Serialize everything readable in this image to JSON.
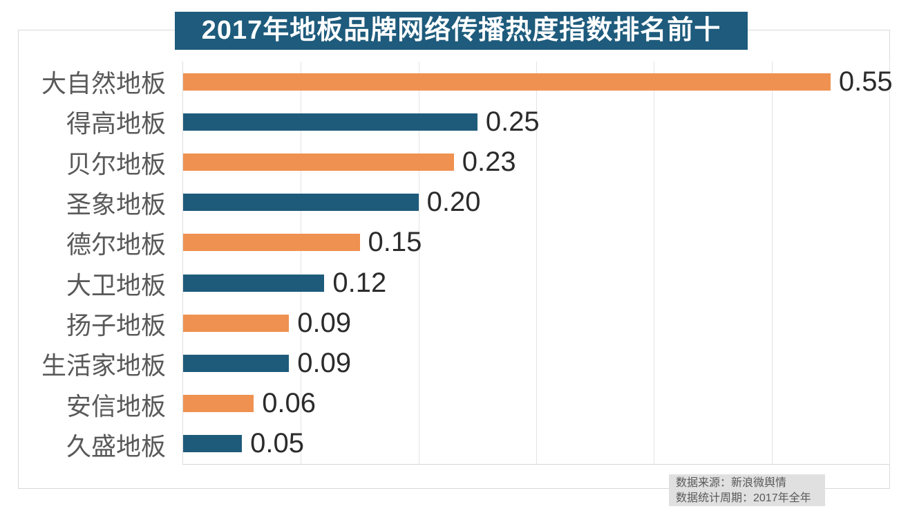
{
  "title": "2017年地板品牌网络传播热度指数排名前十",
  "colors": {
    "title_bg": "#1e5b7c",
    "bar_orange": "#ef9150",
    "bar_blue": "#1e5b7b",
    "category_label": "#595959",
    "value_label": "#2b2b2b",
    "gridline": "#e3e3e3",
    "note_bg": "#e0e0e0"
  },
  "source_note": {
    "line1": "数据来源：新浪微舆情",
    "line2": "数据统计周期：2017年全年"
  },
  "chart_data": {
    "type": "bar",
    "orientation": "horizontal",
    "title": "2017年地板品牌网络传播热度指数排名前十",
    "categories": [
      "大自然地板",
      "得高地板",
      "贝尔地板",
      "圣象地板",
      "德尔地板",
      "大卫地板",
      "扬子地板",
      "生活家地板",
      "安信地板",
      "久盛地板"
    ],
    "values": [
      0.55,
      0.25,
      0.23,
      0.2,
      0.15,
      0.12,
      0.09,
      0.09,
      0.06,
      0.05
    ],
    "value_labels": [
      "0.55",
      "0.25",
      "0.23",
      "0.20",
      "0.15",
      "0.12",
      "0.09",
      "0.09",
      "0.06",
      "0.05"
    ],
    "bar_colors": [
      "#ef9150",
      "#1e5b7b"
    ],
    "xlabel": "",
    "ylabel": "",
    "xlim": [
      0,
      0.6
    ],
    "gridlines": [
      0.1,
      0.2,
      0.3,
      0.4,
      0.5,
      0.6
    ],
    "grid": "vertical-on",
    "legend": "none",
    "value_label_position": "end-of-bar",
    "source": "新浪微舆情",
    "period": "2017年全年"
  }
}
